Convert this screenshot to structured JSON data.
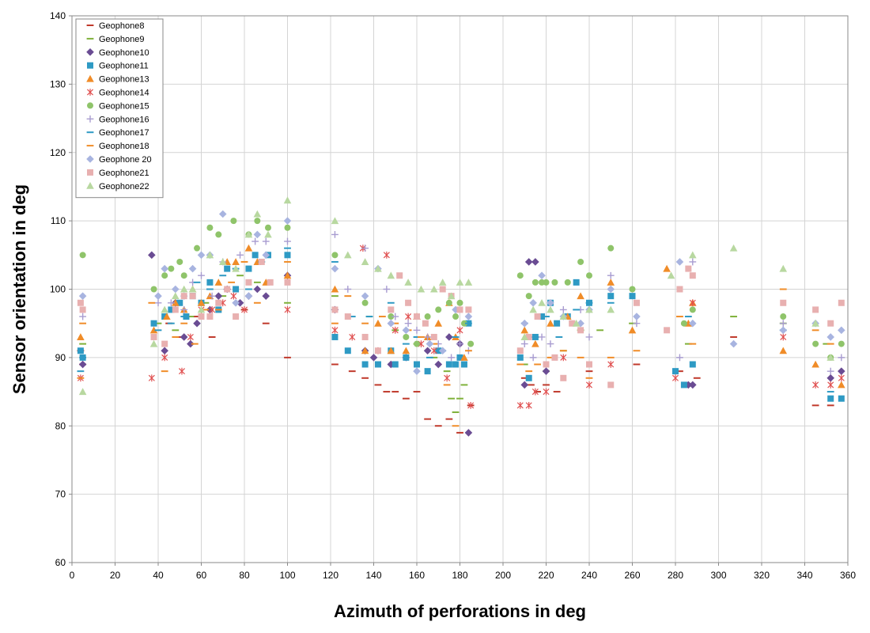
{
  "chart_data": {
    "type": "scatter",
    "title": "",
    "xlabel": "Azimuth of perforations in deg",
    "ylabel": "Sensor orientation in deg",
    "xlim": [
      0,
      360
    ],
    "ylim": [
      60,
      140
    ],
    "xticks": [
      "0",
      "20",
      "40",
      "60",
      "80",
      "100",
      "120",
      "140",
      "160",
      "180",
      "200",
      "220",
      "240",
      "260",
      "280",
      "300",
      "320",
      "340",
      "360"
    ],
    "yticks": [
      "60",
      "70",
      "80",
      "90",
      "100",
      "110",
      "120",
      "130",
      "140"
    ],
    "grid": true,
    "legend_position": "top-left",
    "series": [
      {
        "name": "Geophone8",
        "color": "#c0392b",
        "marker": "dash",
        "x": [
          4,
          5,
          45,
          50,
          58,
          65,
          80,
          90,
          100,
          122,
          130,
          136,
          142,
          146,
          150,
          155,
          160,
          165,
          170,
          175,
          180,
          185,
          210,
          213,
          216,
          220,
          225,
          240,
          262,
          282,
          290,
          307,
          345,
          352
        ],
        "y": [
          91,
          89,
          95,
          93,
          96,
          93,
          97,
          95,
          90,
          89,
          88,
          87,
          86,
          85,
          85,
          84,
          85,
          81,
          80,
          81,
          79,
          83,
          87,
          86,
          85,
          86,
          85,
          88,
          89,
          88,
          87,
          93,
          83,
          83
        ]
      },
      {
        "name": "Geophone9",
        "color": "#7fb13a",
        "marker": "dash",
        "x": [
          5,
          40,
          48,
          55,
          62,
          70,
          78,
          86,
          100,
          122,
          138,
          150,
          160,
          168,
          174,
          176,
          178,
          180,
          182,
          210,
          215,
          220,
          228,
          236,
          245,
          260,
          286,
          307,
          330,
          350
        ],
        "y": [
          92,
          95,
          94,
          96,
          98,
          99,
          102,
          101,
          98,
          99,
          96,
          94,
          92,
          90,
          88,
          84,
          82,
          84,
          86,
          89,
          93,
          88,
          91,
          94,
          94,
          95,
          92,
          96,
          95,
          92
        ]
      },
      {
        "name": "Geophone10",
        "color": "#6a4c93",
        "marker": "diamond",
        "x": [
          5,
          37,
          43,
          48,
          52,
          55,
          58,
          64,
          68,
          72,
          78,
          82,
          86,
          90,
          100,
          122,
          136,
          140,
          148,
          155,
          165,
          170,
          175,
          180,
          184,
          210,
          212,
          215,
          220,
          286,
          288,
          352,
          357
        ],
        "y": [
          89,
          105,
          91,
          98,
          93,
          92,
          95,
          97,
          99,
          100,
          98,
          99,
          100,
          99,
          102,
          97,
          91,
          90,
          89,
          90,
          91,
          89,
          93,
          92,
          79,
          86,
          104,
          104,
          88,
          86,
          86,
          87,
          88
        ]
      },
      {
        "name": "Geophone11",
        "color": "#2e9ac4",
        "marker": "square",
        "x": [
          4,
          5,
          38,
          43,
          46,
          50,
          53,
          56,
          60,
          64,
          68,
          72,
          76,
          82,
          85,
          91,
          100,
          122,
          128,
          136,
          142,
          148,
          150,
          155,
          160,
          165,
          170,
          175,
          178,
          180,
          182,
          184,
          208,
          212,
          215,
          218,
          222,
          225,
          230,
          234,
          240,
          250,
          260,
          280,
          284,
          288,
          352,
          357
        ],
        "y": [
          91,
          90,
          95,
          96,
          97,
          98,
          96,
          99,
          98,
          101,
          97,
          103,
          100,
          103,
          105,
          105,
          105,
          93,
          91,
          89,
          89,
          91,
          89,
          90,
          89,
          88,
          91,
          89,
          89,
          90,
          89,
          95,
          90,
          87,
          93,
          96,
          98,
          95,
          96,
          101,
          98,
          99,
          99,
          88,
          86,
          89,
          84,
          84
        ]
      },
      {
        "name": "Geophone13",
        "color": "#f08c28",
        "marker": "triangle",
        "x": [
          4,
          38,
          44,
          48,
          52,
          56,
          60,
          64,
          68,
          72,
          76,
          82,
          86,
          90,
          100,
          122,
          136,
          142,
          148,
          155,
          160,
          165,
          170,
          175,
          178,
          182,
          210,
          215,
          222,
          230,
          236,
          250,
          260,
          276,
          286,
          288,
          330,
          345,
          357
        ],
        "y": [
          93,
          94,
          96,
          98,
          97,
          100,
          98,
          99,
          101,
          104,
          104,
          106,
          104,
          101,
          102,
          100,
          91,
          95,
          91,
          91,
          96,
          93,
          95,
          98,
          93,
          90,
          94,
          92,
          95,
          96,
          99,
          101,
          94,
          103,
          95,
          98,
          91,
          89,
          86
        ]
      },
      {
        "name": "Geophone14",
        "color": "#e05050",
        "marker": "asterisk",
        "x": [
          4,
          37,
          43,
          51,
          55,
          60,
          65,
          70,
          75,
          80,
          100,
          122,
          130,
          135,
          142,
          146,
          150,
          156,
          162,
          168,
          174,
          180,
          185,
          208,
          212,
          215,
          220,
          228,
          240,
          250,
          280,
          288,
          330,
          345,
          352,
          357
        ],
        "y": [
          87,
          87,
          90,
          88,
          93,
          97,
          97,
          98,
          99,
          97,
          97,
          94,
          93,
          106,
          91,
          105,
          94,
          96,
          92,
          91,
          87,
          94,
          83,
          83,
          83,
          85,
          85,
          90,
          86,
          89,
          87,
          98,
          93,
          86,
          86,
          87
        ]
      },
      {
        "name": "Geophone15",
        "color": "#8fc46a",
        "marker": "circle",
        "x": [
          5,
          38,
          43,
          46,
          50,
          52,
          58,
          64,
          68,
          75,
          82,
          86,
          91,
          100,
          122,
          136,
          148,
          155,
          160,
          165,
          170,
          175,
          178,
          180,
          182,
          185,
          208,
          212,
          215,
          218,
          220,
          224,
          230,
          236,
          240,
          250,
          260,
          284,
          288,
          330,
          345,
          352,
          357
        ],
        "y": [
          105,
          100,
          102,
          103,
          104,
          102,
          106,
          109,
          108,
          110,
          108,
          110,
          109,
          109,
          105,
          98,
          96,
          93,
          92,
          96,
          97,
          98,
          96,
          98,
          95,
          92,
          102,
          99,
          101,
          101,
          101,
          101,
          101,
          104,
          102,
          106,
          100,
          95,
          97,
          96,
          92,
          90,
          92
        ]
      },
      {
        "name": "Geophone16",
        "color": "#a89cd0",
        "marker": "plus",
        "x": [
          5,
          40,
          46,
          52,
          56,
          60,
          65,
          70,
          78,
          85,
          90,
          100,
          122,
          128,
          136,
          146,
          150,
          156,
          160,
          165,
          170,
          176,
          180,
          184,
          210,
          214,
          218,
          222,
          228,
          236,
          240,
          250,
          262,
          282,
          288,
          330,
          352,
          357
        ],
        "y": [
          96,
          98,
          98,
          97,
          101,
          102,
          99,
          104,
          105,
          107,
          107,
          107,
          108,
          100,
          106,
          100,
          96,
          95,
          94,
          93,
          92,
          90,
          92,
          91,
          92,
          90,
          93,
          92,
          97,
          97,
          93,
          102,
          95,
          90,
          104,
          95,
          88,
          90
        ]
      },
      {
        "name": "Geophone17",
        "color": "#2e9ac4",
        "marker": "dash",
        "x": [
          4,
          5,
          40,
          46,
          52,
          58,
          64,
          70,
          76,
          82,
          88,
          100,
          122,
          130,
          138,
          148,
          155,
          160,
          166,
          172,
          178,
          184,
          210,
          215,
          220,
          226,
          234,
          240,
          250,
          286,
          330,
          352
        ],
        "y": [
          88,
          90,
          94,
          95,
          96,
          101,
          100,
          102,
          103,
          100,
          104,
          106,
          104,
          96,
          96,
          98,
          92,
          93,
          90,
          91,
          93,
          95,
          95,
          93,
          96,
          93,
          97,
          98,
          98,
          96,
          94,
          85
        ]
      },
      {
        "name": "Geophone18",
        "color": "#f08c28",
        "marker": "dash",
        "x": [
          4,
          5,
          37,
          43,
          48,
          52,
          57,
          62,
          68,
          74,
          80,
          86,
          100,
          122,
          128,
          136,
          144,
          150,
          156,
          162,
          168,
          174,
          178,
          184,
          208,
          212,
          216,
          222,
          228,
          236,
          240,
          250,
          262,
          282,
          288,
          330,
          345,
          352
        ],
        "y": [
          87,
          95,
          98,
          88,
          93,
          95,
          92,
          97,
          97,
          101,
          104,
          98,
          104,
          95,
          99,
          95,
          96,
          95,
          94,
          93,
          92,
          86,
          80,
          91,
          89,
          88,
          89,
          90,
          91,
          90,
          87,
          90,
          91,
          96,
          92,
          100,
          94,
          92
        ]
      },
      {
        "name": "Geophone 20",
        "color": "#a8b4e0",
        "marker": "diamond",
        "x": [
          5,
          40,
          43,
          48,
          52,
          56,
          60,
          64,
          70,
          76,
          82,
          86,
          90,
          100,
          122,
          136,
          142,
          148,
          155,
          160,
          166,
          172,
          178,
          184,
          210,
          214,
          218,
          222,
          228,
          236,
          240,
          250,
          262,
          282,
          288,
          307,
          330,
          345,
          352,
          357
        ],
        "y": [
          99,
          99,
          103,
          100,
          99,
          103,
          105,
          105,
          111,
          98,
          99,
          108,
          105,
          110,
          103,
          99,
          103,
          95,
          94,
          88,
          92,
          91,
          97,
          96,
          95,
          98,
          102,
          98,
          96,
          95,
          97,
          100,
          96,
          104,
          95,
          92,
          94,
          95,
          93,
          94
        ]
      },
      {
        "name": "Geophone21",
        "color": "#e8b0b0",
        "marker": "square",
        "x": [
          4,
          5,
          38,
          43,
          48,
          52,
          56,
          60,
          64,
          68,
          72,
          76,
          82,
          88,
          92,
          100,
          122,
          128,
          136,
          142,
          148,
          152,
          156,
          160,
          164,
          168,
          172,
          176,
          180,
          184,
          208,
          212,
          216,
          220,
          224,
          228,
          232,
          236,
          240,
          250,
          262,
          276,
          282,
          286,
          288,
          330,
          345,
          352,
          357
        ],
        "y": [
          98,
          97,
          93,
          92,
          97,
          99,
          99,
          96,
          96,
          98,
          100,
          96,
          101,
          104,
          101,
          101,
          97,
          96,
          93,
          91,
          97,
          102,
          98,
          96,
          95,
          93,
          100,
          99,
          97,
          97,
          91,
          93,
          96,
          89,
          90,
          87,
          95,
          94,
          89,
          86,
          98,
          94,
          100,
          103,
          102,
          98,
          97,
          95,
          98
        ]
      },
      {
        "name": "Geophone22",
        "color": "#b8d8a0",
        "marker": "triangle",
        "x": [
          5,
          38,
          43,
          48,
          52,
          56,
          60,
          64,
          70,
          76,
          82,
          86,
          91,
          100,
          122,
          128,
          136,
          142,
          148,
          156,
          162,
          168,
          172,
          176,
          180,
          184,
          210,
          214,
          218,
          222,
          228,
          234,
          240,
          250,
          278,
          288,
          307,
          330,
          345,
          352
        ],
        "y": [
          85,
          92,
          97,
          99,
          100,
          100,
          97,
          105,
          104,
          103,
          108,
          111,
          108,
          113,
          110,
          105,
          104,
          103,
          102,
          101,
          100,
          100,
          101,
          99,
          101,
          101,
          93,
          97,
          98,
          97,
          96,
          95,
          97,
          97,
          102,
          105,
          106,
          103,
          95,
          90
        ]
      }
    ]
  }
}
